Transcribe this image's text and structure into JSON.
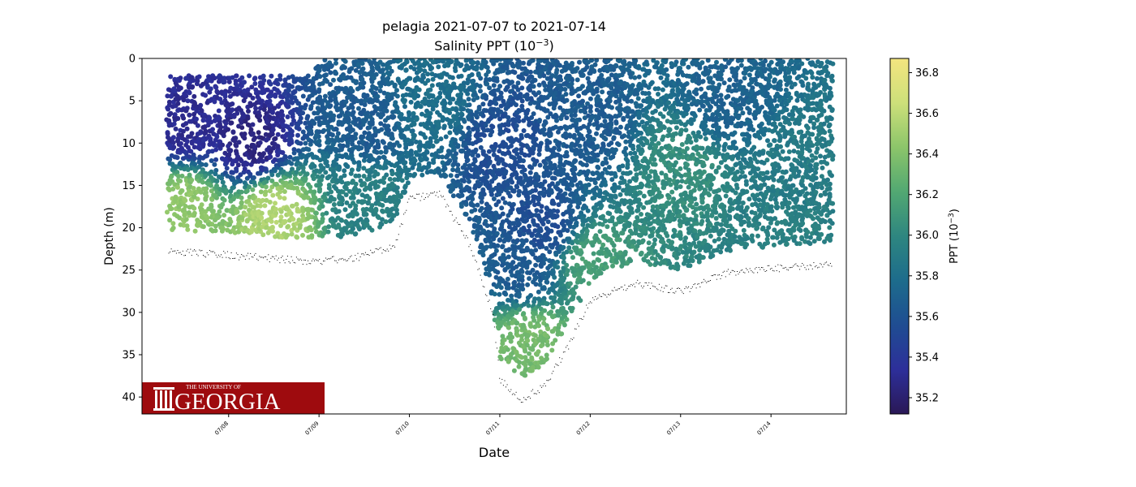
{
  "chart_data": {
    "type": "scatter",
    "title": "pelagia 2021-07-07 to 2021-07-14",
    "subtitle_base": "Salinity PPT (10",
    "subtitle_exp": "−3",
    "subtitle_close": ")",
    "xlabel": "Date",
    "ylabel": "Depth (m)",
    "x_range": [
      "2021-07-07 01:00",
      "2021-07-14 20:00"
    ],
    "xticks": [
      "07/08",
      "07/09",
      "07/10",
      "07/11",
      "07/12",
      "07/13",
      "07/14"
    ],
    "ylim": [
      0,
      42
    ],
    "y_inverted": true,
    "yticks": [
      0,
      5,
      10,
      15,
      20,
      25,
      30,
      35,
      40
    ],
    "colorbar": {
      "label_base": "PPT (10",
      "label_exp": "−3",
      "label_close": ")",
      "range": [
        35.12,
        36.87
      ],
      "ticks": [
        35.2,
        35.4,
        35.6,
        35.8,
        36.0,
        36.2,
        36.4,
        36.6,
        36.8
      ],
      "colormap": [
        "#2a1856",
        "#2d2f9a",
        "#1f4d92",
        "#1d6c8c",
        "#2e8680",
        "#52a872",
        "#8cc56a",
        "#cde07a",
        "#f3e57f"
      ]
    },
    "bottom_depth_m": [
      {
        "date": "2021-07-07 08:00",
        "depth": 22.8
      },
      {
        "date": "2021-07-08 00:00",
        "depth": 23.2
      },
      {
        "date": "2021-07-08 12:00",
        "depth": 23.6
      },
      {
        "date": "2021-07-09 00:00",
        "depth": 24.0
      },
      {
        "date": "2021-07-09 12:00",
        "depth": 23.3
      },
      {
        "date": "2021-07-09 20:00",
        "depth": 22.0
      },
      {
        "date": "2021-07-10 00:00",
        "depth": 16.5
      },
      {
        "date": "2021-07-10 08:00",
        "depth": 16.0
      },
      {
        "date": "2021-07-10 16:00",
        "depth": 22.0
      },
      {
        "date": "2021-07-10 22:00",
        "depth": 30.0
      },
      {
        "date": "2021-07-11 00:00",
        "depth": 38.0
      },
      {
        "date": "2021-07-11 06:00",
        "depth": 40.3
      },
      {
        "date": "2021-07-11 12:00",
        "depth": 38.5
      },
      {
        "date": "2021-07-11 18:00",
        "depth": 34.0
      },
      {
        "date": "2021-07-12 00:00",
        "depth": 28.5
      },
      {
        "date": "2021-07-12 12:00",
        "depth": 26.5
      },
      {
        "date": "2021-07-13 00:00",
        "depth": 27.5
      },
      {
        "date": "2021-07-13 12:00",
        "depth": 25.3
      },
      {
        "date": "2021-07-14 00:00",
        "depth": 24.8
      },
      {
        "date": "2021-07-14 12:00",
        "depth": 24.4
      },
      {
        "date": "2021-07-14 16:00",
        "depth": 24.2
      }
    ],
    "water_column_top_m": [
      {
        "date": "2021-07-07 08:00",
        "depth": 2.0
      },
      {
        "date": "2021-07-08 22:00",
        "depth": 2.0
      },
      {
        "date": "2021-07-09 00:00",
        "depth": 0.0
      },
      {
        "date": "2021-07-14 16:00",
        "depth": 0.0
      }
    ],
    "salinity_samples_ppt": [
      {
        "date": "2021-07-07 12:00",
        "depth": 8,
        "value": 35.3
      },
      {
        "date": "2021-07-08 06:00",
        "depth": 10,
        "value": 35.25
      },
      {
        "date": "2021-07-07 12:00",
        "depth": 17.5,
        "value": 36.45
      },
      {
        "date": "2021-07-08 12:00",
        "depth": 18.5,
        "value": 36.55
      },
      {
        "date": "2021-07-09 12:00",
        "depth": 8,
        "value": 35.65
      },
      {
        "date": "2021-07-09 12:00",
        "depth": 17,
        "value": 35.95
      },
      {
        "date": "2021-07-10 06:00",
        "depth": 6,
        "value": 35.8
      },
      {
        "date": "2021-07-11 00:00",
        "depth": 10,
        "value": 35.55
      },
      {
        "date": "2021-07-11 06:00",
        "depth": 25,
        "value": 35.65
      },
      {
        "date": "2021-07-11 12:00",
        "depth": 20,
        "value": 35.55
      },
      {
        "date": "2021-07-11 08:00",
        "depth": 33.5,
        "value": 36.35
      },
      {
        "date": "2021-07-12 00:00",
        "depth": 8,
        "value": 35.65
      },
      {
        "date": "2021-07-12 00:00",
        "depth": 24,
        "value": 36.15
      },
      {
        "date": "2021-07-13 00:00",
        "depth": 13,
        "value": 36.05
      },
      {
        "date": "2021-07-13 12:00",
        "depth": 5,
        "value": 35.7
      },
      {
        "date": "2021-07-14 06:00",
        "depth": 14,
        "value": 35.9
      },
      {
        "date": "2021-07-14 06:00",
        "depth": 21,
        "value": 35.95
      }
    ]
  },
  "logo": {
    "small_text": "THE UNIVERSITY OF",
    "big_text": "GEORGIA",
    "bg_color": "#9e0b0e",
    "fg_color": "#ffffff"
  }
}
